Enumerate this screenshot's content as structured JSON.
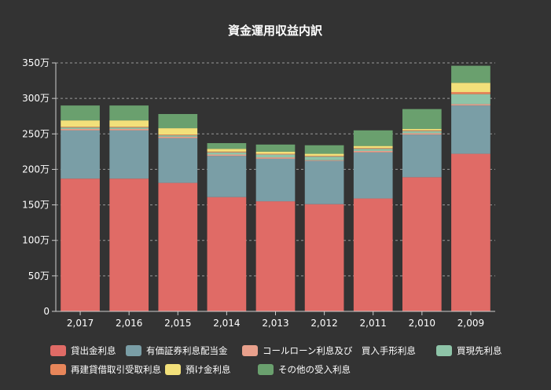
{
  "chart_data": {
    "type": "bar",
    "stacked": true,
    "title": "資金運用収益内訳",
    "xlabel": "",
    "ylabel": "",
    "categories": [
      "2,017",
      "2,016",
      "2,015",
      "2,014",
      "2,013",
      "2,012",
      "2,011",
      "2,010",
      "2,009"
    ],
    "ylim": [
      0,
      3500000
    ],
    "y_ticks": [
      {
        "value": 0,
        "label": "0"
      },
      {
        "value": 500000,
        "label": "50万"
      },
      {
        "value": 1000000,
        "label": "100万"
      },
      {
        "value": 1500000,
        "label": "150万"
      },
      {
        "value": 2000000,
        "label": "200万"
      },
      {
        "value": 2500000,
        "label": "250万"
      },
      {
        "value": 3000000,
        "label": "300万"
      },
      {
        "value": 3500000,
        "label": "350万"
      }
    ],
    "grid": true,
    "legend_position": "bottom",
    "series": [
      {
        "name": "貸出金利息",
        "color": "#e06b66",
        "values": [
          1870000,
          1870000,
          1810000,
          1610000,
          1550000,
          1510000,
          1590000,
          1890000,
          2220000
        ]
      },
      {
        "name": "有価証券利息配当金",
        "color": "#7a9ea6",
        "values": [
          680000,
          680000,
          630000,
          580000,
          600000,
          610000,
          650000,
          600000,
          680000
        ]
      },
      {
        "name": "コールローン利息及び　買入手形利息",
        "color": "#e8a08c",
        "values": [
          20000,
          20000,
          20000,
          20000,
          20000,
          10000,
          20000,
          20000,
          20000
        ]
      },
      {
        "name": "買現先利息",
        "color": "#8ec4a8",
        "values": [
          20000,
          20000,
          20000,
          30000,
          40000,
          50000,
          30000,
          30000,
          140000
        ]
      },
      {
        "name": "再建貸借取引受取利息",
        "color": "#e8865a",
        "values": [
          10000,
          10000,
          10000,
          10000,
          10000,
          10000,
          10000,
          10000,
          30000
        ]
      },
      {
        "name": "預け金利息",
        "color": "#f2e07a",
        "values": [
          90000,
          90000,
          90000,
          40000,
          30000,
          30000,
          30000,
          20000,
          130000
        ]
      },
      {
        "name": "その他の受入利息",
        "color": "#6aa06e",
        "values": [
          210000,
          210000,
          200000,
          80000,
          100000,
          120000,
          220000,
          280000,
          240000
        ]
      }
    ]
  }
}
